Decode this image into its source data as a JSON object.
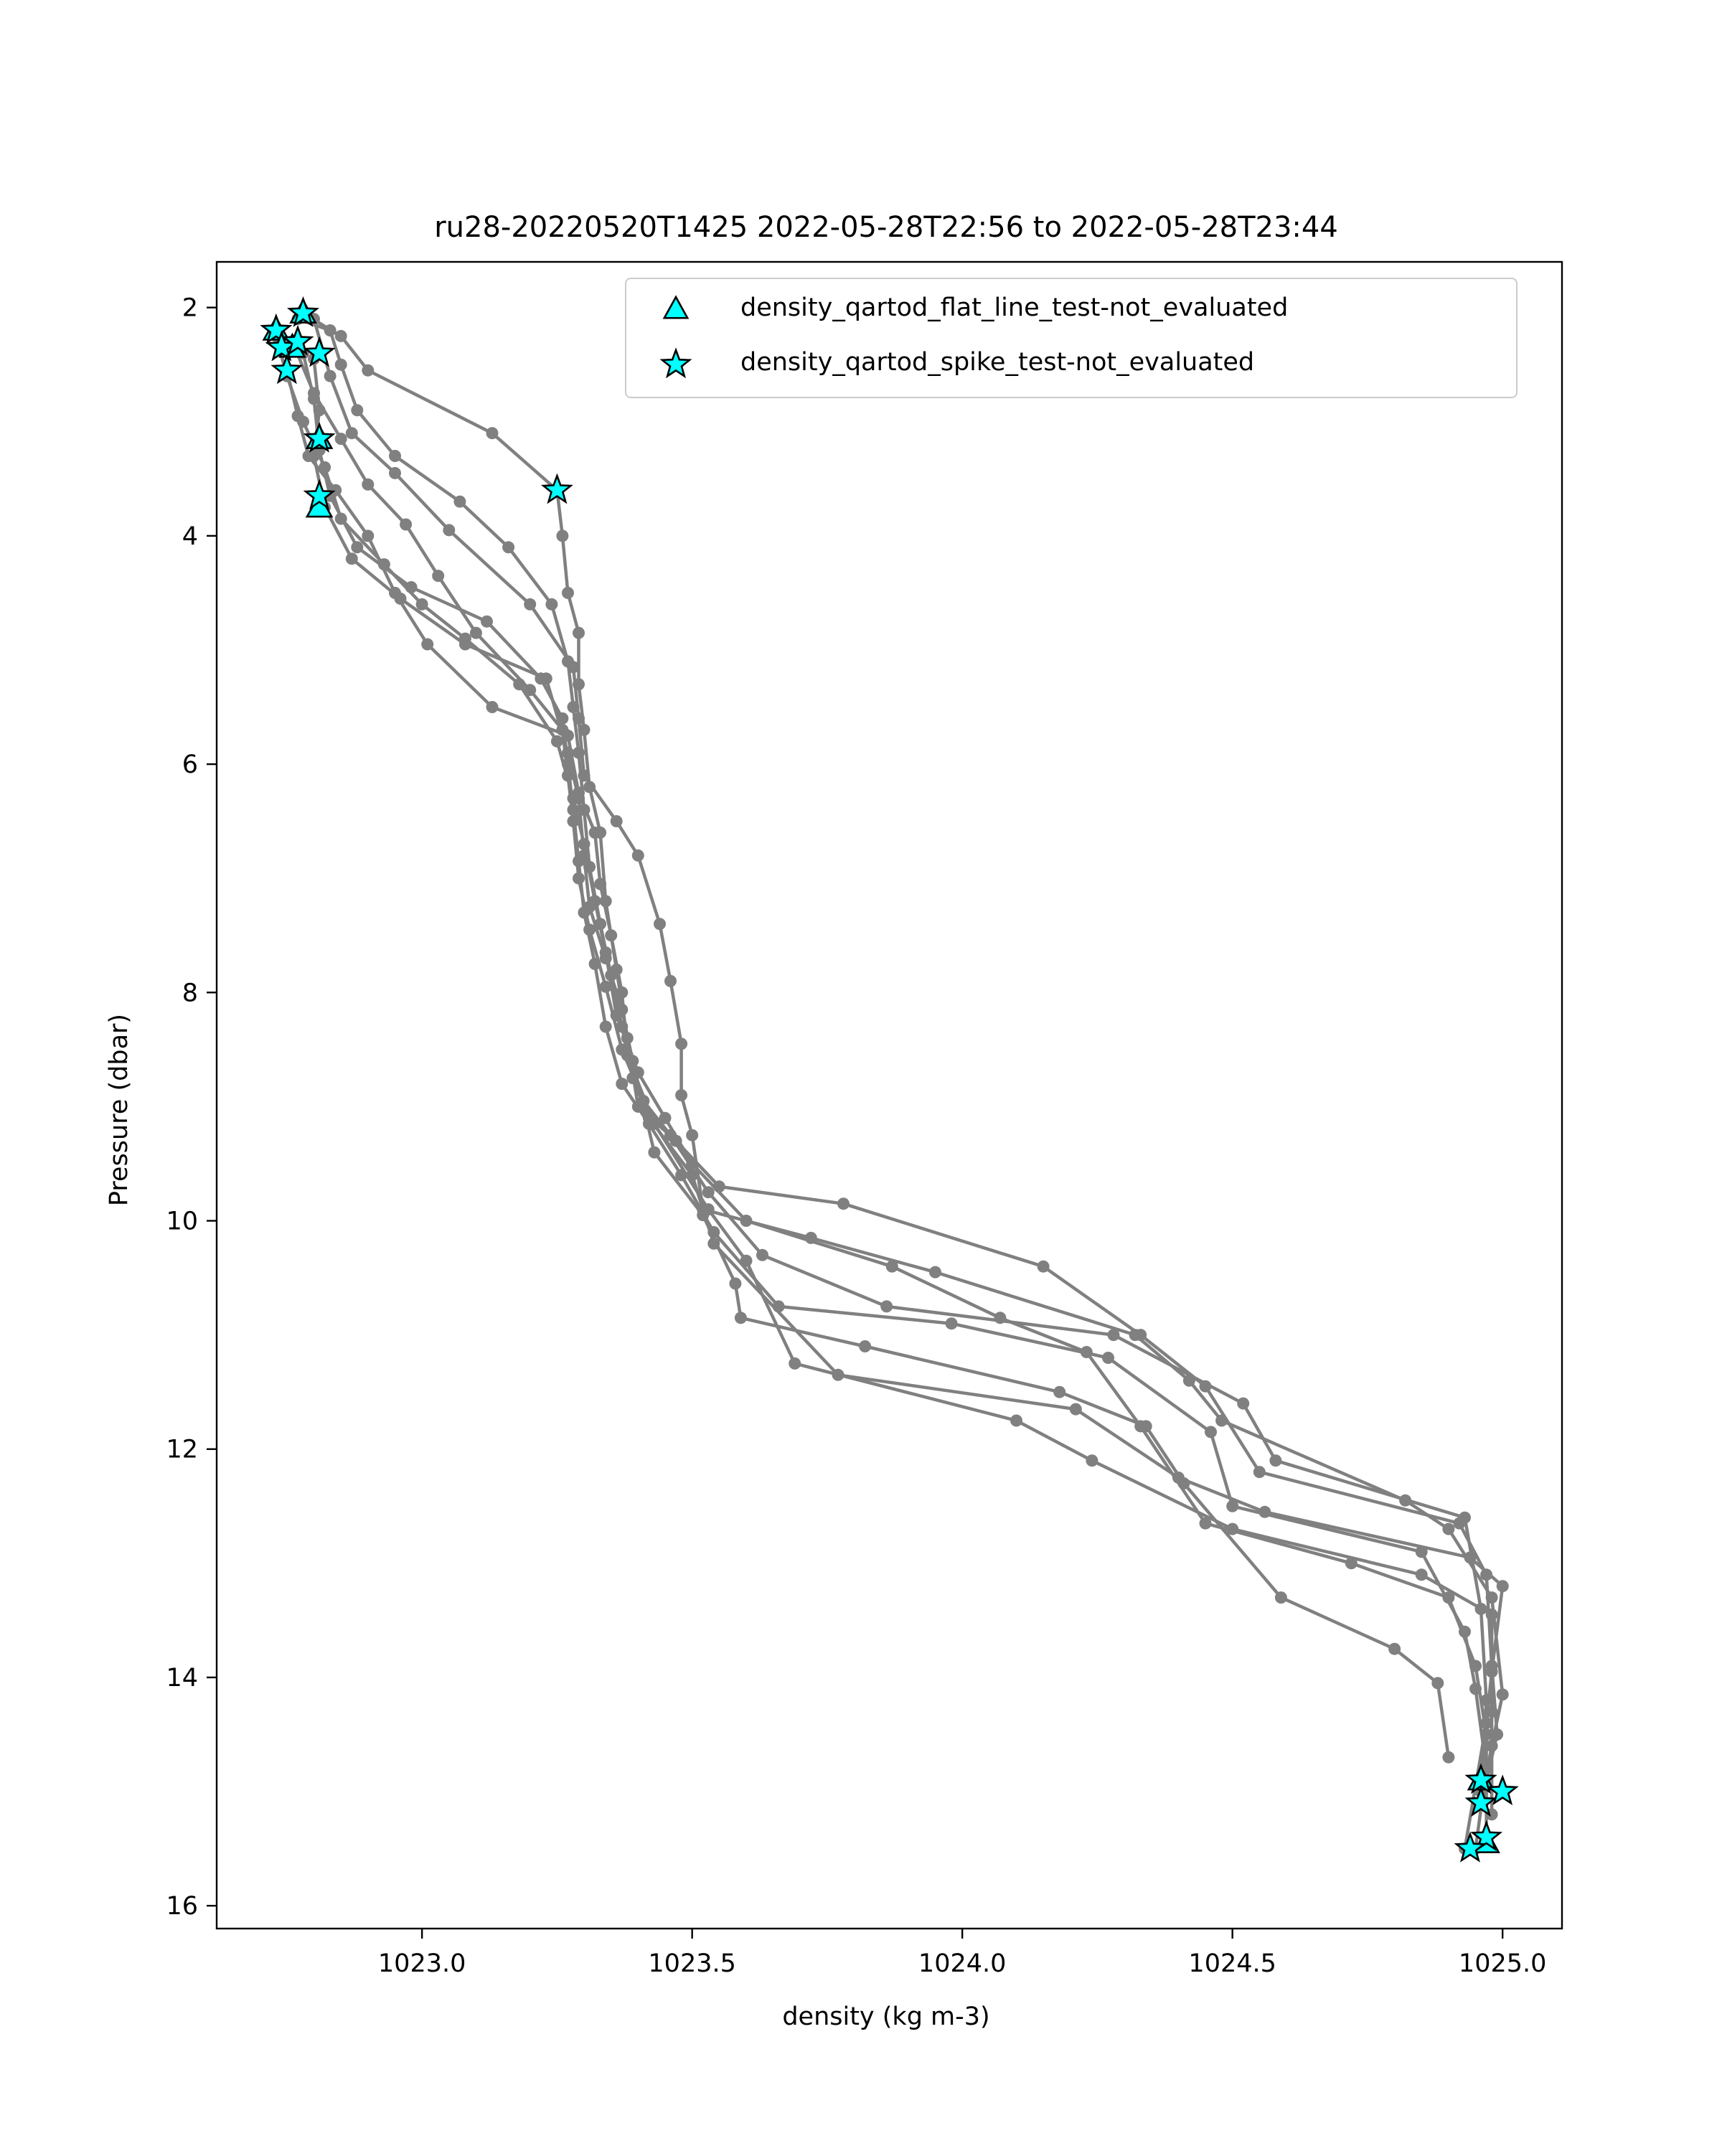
{
  "chart_data": {
    "type": "line",
    "title": "ru28-20220520T1425 2022-05-28T22:56 to 2022-05-28T23:44",
    "xlabel": "density (kg m-3)",
    "ylabel": "Pressure (dbar)",
    "xlim": [
      1022.62,
      1025.11
    ],
    "ylim": [
      16.2,
      1.6
    ],
    "y_inverted": true,
    "grid": false,
    "legend_position": "top-right",
    "x_ticks": [
      1023.0,
      1023.5,
      1024.0,
      1024.5,
      1025.0
    ],
    "x_tick_labels": [
      "1023.0",
      "1023.5",
      "1024.0",
      "1024.5",
      "1025.0"
    ],
    "y_ticks": [
      2,
      4,
      6,
      8,
      10,
      12,
      14,
      16
    ],
    "y_tick_labels": [
      "2",
      "4",
      "6",
      "8",
      "10",
      "12",
      "14",
      "16"
    ],
    "profile_color": "#808080",
    "marker_fill": "#00ffff",
    "marker_edge": "#000000",
    "series": [
      {
        "points": [
          [
            1022.78,
            2.05
          ],
          [
            1022.85,
            2.25
          ],
          [
            1022.9,
            2.55
          ],
          [
            1023.13,
            3.1
          ],
          [
            1023.25,
            3.6
          ],
          [
            1023.26,
            4.0
          ],
          [
            1023.27,
            4.5
          ],
          [
            1023.29,
            4.85
          ],
          [
            1023.29,
            5.3
          ],
          [
            1023.3,
            5.7
          ],
          [
            1023.31,
            6.2
          ],
          [
            1023.33,
            6.6
          ],
          [
            1023.34,
            7.2
          ],
          [
            1023.36,
            7.8
          ],
          [
            1023.38,
            8.4
          ],
          [
            1023.4,
            9.0
          ],
          [
            1023.47,
            9.3
          ],
          [
            1023.55,
            9.7
          ],
          [
            1023.78,
            9.85
          ],
          [
            1024.15,
            10.4
          ],
          [
            1024.33,
            11.0
          ],
          [
            1024.45,
            11.45
          ],
          [
            1024.55,
            12.2
          ],
          [
            1024.92,
            12.65
          ],
          [
            1024.97,
            13.1
          ],
          [
            1024.98,
            13.9
          ],
          [
            1024.99,
            14.5
          ],
          [
            1024.97,
            14.9
          ]
        ]
      },
      {
        "points": [
          [
            1022.8,
            2.1
          ],
          [
            1022.83,
            2.6
          ],
          [
            1022.87,
            3.1
          ],
          [
            1022.95,
            3.45
          ],
          [
            1023.05,
            3.95
          ],
          [
            1023.2,
            4.6
          ],
          [
            1023.28,
            5.15
          ],
          [
            1023.29,
            5.6
          ],
          [
            1023.3,
            6.1
          ],
          [
            1023.36,
            6.5
          ],
          [
            1023.4,
            6.8
          ],
          [
            1023.44,
            7.4
          ],
          [
            1023.46,
            7.9
          ],
          [
            1023.48,
            8.45
          ],
          [
            1023.48,
            8.9
          ],
          [
            1023.5,
            9.25
          ],
          [
            1023.52,
            9.9
          ],
          [
            1023.72,
            10.15
          ],
          [
            1023.95,
            10.45
          ],
          [
            1024.32,
            11.0
          ],
          [
            1024.42,
            11.4
          ],
          [
            1024.48,
            11.75
          ],
          [
            1024.82,
            12.45
          ],
          [
            1024.9,
            12.7
          ],
          [
            1024.98,
            13.3
          ],
          [
            1025.0,
            14.15
          ],
          [
            1024.98,
            14.6
          ],
          [
            1024.96,
            15.1
          ]
        ]
      },
      {
        "points": [
          [
            1022.73,
            2.25
          ],
          [
            1022.75,
            2.6
          ],
          [
            1022.78,
            3.0
          ],
          [
            1022.82,
            3.4
          ],
          [
            1022.85,
            3.85
          ],
          [
            1022.93,
            4.25
          ],
          [
            1023.0,
            4.6
          ],
          [
            1023.08,
            4.9
          ],
          [
            1023.18,
            5.3
          ],
          [
            1023.25,
            5.8
          ],
          [
            1023.28,
            6.3
          ],
          [
            1023.3,
            6.7
          ],
          [
            1023.32,
            7.2
          ],
          [
            1023.34,
            7.65
          ],
          [
            1023.36,
            8.2
          ],
          [
            1023.4,
            8.7
          ],
          [
            1023.45,
            9.1
          ],
          [
            1023.5,
            9.5
          ],
          [
            1023.6,
            10.0
          ],
          [
            1023.87,
            10.4
          ],
          [
            1024.07,
            10.85
          ],
          [
            1024.23,
            11.15
          ],
          [
            1024.33,
            11.8
          ],
          [
            1024.45,
            12.65
          ],
          [
            1024.72,
            13.0
          ],
          [
            1024.9,
            13.3
          ],
          [
            1024.95,
            13.9
          ],
          [
            1024.97,
            14.5
          ],
          [
            1024.97,
            15.4
          ]
        ]
      },
      {
        "points": [
          [
            1022.76,
            2.3
          ],
          [
            1022.8,
            2.75
          ],
          [
            1022.85,
            3.15
          ],
          [
            1022.9,
            3.55
          ],
          [
            1022.97,
            3.9
          ],
          [
            1023.03,
            4.35
          ],
          [
            1023.1,
            4.85
          ],
          [
            1023.2,
            5.35
          ],
          [
            1023.26,
            5.7
          ],
          [
            1023.27,
            6.1
          ],
          [
            1023.28,
            6.5
          ],
          [
            1023.29,
            7.0
          ],
          [
            1023.31,
            7.45
          ],
          [
            1023.34,
            7.95
          ],
          [
            1023.37,
            8.5
          ],
          [
            1023.41,
            8.95
          ],
          [
            1023.46,
            9.25
          ],
          [
            1023.53,
            9.75
          ],
          [
            1023.63,
            10.3
          ],
          [
            1023.86,
            10.75
          ],
          [
            1024.28,
            11.0
          ],
          [
            1024.52,
            11.6
          ],
          [
            1024.58,
            12.1
          ],
          [
            1024.93,
            12.6
          ],
          [
            1024.96,
            13.4
          ],
          [
            1024.97,
            14.2
          ],
          [
            1024.96,
            15.0
          ]
        ]
      },
      {
        "points": [
          [
            1022.78,
            2.4
          ],
          [
            1022.8,
            2.8
          ],
          [
            1022.81,
            3.25
          ],
          [
            1022.83,
            3.65
          ],
          [
            1022.88,
            4.1
          ],
          [
            1022.98,
            4.45
          ],
          [
            1023.12,
            4.75
          ],
          [
            1023.22,
            5.25
          ],
          [
            1023.26,
            5.6
          ],
          [
            1023.27,
            6.0
          ],
          [
            1023.28,
            6.4
          ],
          [
            1023.29,
            6.85
          ],
          [
            1023.3,
            7.3
          ],
          [
            1023.32,
            7.75
          ],
          [
            1023.34,
            8.3
          ],
          [
            1023.37,
            8.8
          ],
          [
            1023.42,
            9.15
          ],
          [
            1023.48,
            9.6
          ],
          [
            1023.54,
            10.1
          ],
          [
            1023.66,
            10.75
          ],
          [
            1023.98,
            10.9
          ],
          [
            1024.27,
            11.2
          ],
          [
            1024.46,
            11.85
          ],
          [
            1024.5,
            12.5
          ],
          [
            1024.85,
            12.9
          ],
          [
            1024.93,
            13.6
          ],
          [
            1024.95,
            14.1
          ],
          [
            1024.97,
            14.8
          ],
          [
            1024.95,
            15.5
          ]
        ]
      },
      {
        "points": [
          [
            1022.8,
            2.45
          ],
          [
            1022.81,
            2.9
          ],
          [
            1022.8,
            3.3
          ],
          [
            1022.82,
            3.75
          ],
          [
            1022.87,
            4.2
          ],
          [
            1022.96,
            4.55
          ],
          [
            1023.08,
            4.95
          ],
          [
            1023.23,
            5.25
          ],
          [
            1023.27,
            5.9
          ],
          [
            1023.29,
            6.3
          ],
          [
            1023.3,
            6.8
          ],
          [
            1023.31,
            7.25
          ],
          [
            1023.34,
            7.7
          ],
          [
            1023.37,
            8.15
          ],
          [
            1023.39,
            8.6
          ],
          [
            1023.43,
            9.4
          ],
          [
            1023.52,
            9.95
          ],
          [
            1023.58,
            10.55
          ],
          [
            1023.59,
            10.85
          ],
          [
            1023.82,
            11.1
          ],
          [
            1024.18,
            11.5
          ],
          [
            1024.34,
            11.8
          ],
          [
            1024.41,
            12.3
          ],
          [
            1024.59,
            13.3
          ],
          [
            1024.8,
            13.75
          ],
          [
            1024.88,
            14.05
          ],
          [
            1024.9,
            14.7
          ]
        ]
      },
      {
        "points": [
          [
            1022.75,
            2.55
          ],
          [
            1022.77,
            2.95
          ],
          [
            1022.79,
            3.3
          ],
          [
            1022.84,
            3.6
          ],
          [
            1022.9,
            4.0
          ],
          [
            1022.95,
            4.5
          ],
          [
            1023.01,
            4.95
          ],
          [
            1023.13,
            5.5
          ],
          [
            1023.27,
            5.75
          ],
          [
            1023.29,
            6.25
          ],
          [
            1023.32,
            6.6
          ],
          [
            1023.33,
            7.05
          ],
          [
            1023.35,
            7.5
          ],
          [
            1023.37,
            8.0
          ],
          [
            1023.38,
            8.55
          ],
          [
            1023.43,
            9.15
          ],
          [
            1023.53,
            9.9
          ],
          [
            1023.6,
            10.35
          ],
          [
            1023.69,
            11.25
          ],
          [
            1024.1,
            11.75
          ],
          [
            1024.24,
            12.1
          ],
          [
            1024.5,
            12.7
          ],
          [
            1024.85,
            13.1
          ],
          [
            1024.98,
            13.45
          ],
          [
            1024.98,
            14.3
          ],
          [
            1024.98,
            15.2
          ]
        ]
      },
      {
        "points": [
          [
            1022.77,
            2.1
          ],
          [
            1022.83,
            2.2
          ],
          [
            1022.85,
            2.5
          ],
          [
            1022.88,
            2.9
          ],
          [
            1022.95,
            3.3
          ],
          [
            1023.07,
            3.7
          ],
          [
            1023.16,
            4.1
          ],
          [
            1023.24,
            4.6
          ],
          [
            1023.27,
            5.1
          ],
          [
            1023.28,
            5.5
          ],
          [
            1023.29,
            5.9
          ],
          [
            1023.3,
            6.4
          ],
          [
            1023.31,
            6.9
          ],
          [
            1023.33,
            7.4
          ],
          [
            1023.35,
            7.85
          ],
          [
            1023.37,
            8.3
          ],
          [
            1023.39,
            8.75
          ],
          [
            1023.42,
            9.1
          ],
          [
            1023.5,
            9.6
          ],
          [
            1023.54,
            10.2
          ],
          [
            1023.77,
            11.35
          ],
          [
            1024.21,
            11.65
          ],
          [
            1024.4,
            12.25
          ],
          [
            1024.56,
            12.55
          ],
          [
            1024.94,
            12.95
          ],
          [
            1025.0,
            13.2
          ],
          [
            1024.98,
            13.95
          ],
          [
            1024.97,
            14.4
          ],
          [
            1024.93,
            15.5
          ]
        ]
      }
    ],
    "flagged_points": {
      "density_qartod_flat_line_test-not_evaluated": [
        [
          1022.78,
          2.05
        ],
        [
          1022.73,
          2.2
        ],
        [
          1022.76,
          2.35
        ],
        [
          1022.81,
          3.15
        ],
        [
          1022.81,
          3.75
        ],
        [
          1024.96,
          14.9
        ],
        [
          1024.97,
          15.45
        ]
      ],
      "density_qartod_spike_test-not_evaluated": [
        [
          1022.78,
          2.05
        ],
        [
          1022.73,
          2.2
        ],
        [
          1022.74,
          2.35
        ],
        [
          1022.77,
          2.3
        ],
        [
          1022.81,
          2.4
        ],
        [
          1022.75,
          2.55
        ],
        [
          1022.81,
          3.15
        ],
        [
          1023.25,
          3.6
        ],
        [
          1022.81,
          3.65
        ],
        [
          1024.96,
          14.9
        ],
        [
          1025.0,
          15.0
        ],
        [
          1024.96,
          15.1
        ],
        [
          1024.97,
          15.4
        ],
        [
          1024.94,
          15.5
        ]
      ]
    },
    "legend": [
      {
        "label": "density_qartod_flat_line_test-not_evaluated",
        "marker": "triangle"
      },
      {
        "label": "density_qartod_spike_test-not_evaluated",
        "marker": "star"
      }
    ]
  }
}
